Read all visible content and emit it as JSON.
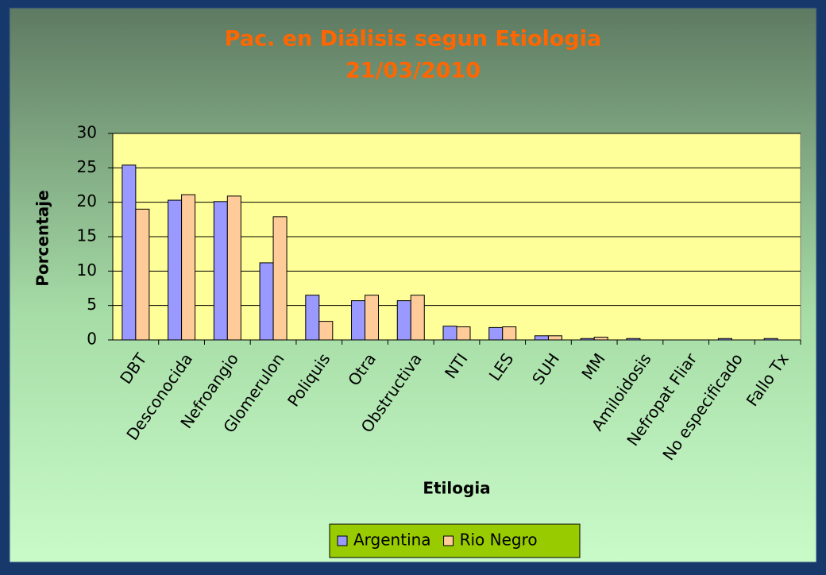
{
  "chart_data": {
    "type": "bar",
    "title": "Pac. en Diálisis segun Etiologia",
    "subtitle": "21/03/2010",
    "y_label": "Porcentaje",
    "x_label": "Etilogia",
    "categories": [
      "DBT",
      "Desconocida",
      "Nefroangio",
      "Glomerulon",
      "Poliquis",
      "Otra",
      "Obstructiva",
      "NTI",
      "LES",
      "SUH",
      "MM",
      "Amiloidosis",
      "Nefropat Fliar",
      "No especificado",
      "Fallo Tx"
    ],
    "series": [
      {
        "name": "Argentina",
        "color": "#9999ff",
        "values": [
          25.4,
          20.3,
          20.1,
          11.2,
          6.5,
          5.7,
          5.7,
          2.0,
          1.8,
          0.6,
          0.2,
          0.2,
          0,
          0.2,
          0.2
        ]
      },
      {
        "name": "Rio Negro",
        "color": "#ffcc99",
        "values": [
          19.0,
          21.1,
          20.9,
          17.9,
          2.7,
          6.5,
          6.5,
          1.9,
          1.9,
          0.6,
          0.4,
          0,
          0,
          0,
          0
        ]
      }
    ],
    "ylim": [
      0,
      30
    ],
    "yticks": [
      0,
      5,
      10,
      15,
      20,
      25,
      30
    ],
    "grid": true,
    "legend": "bottom"
  }
}
